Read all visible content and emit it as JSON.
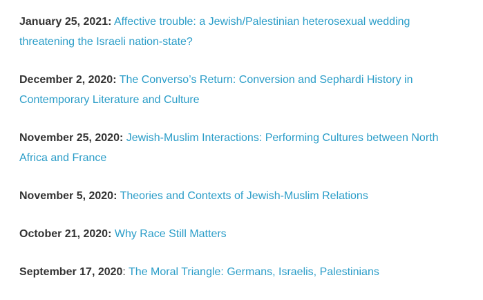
{
  "entries": [
    {
      "date": "January 25, 2021",
      "sep": ":",
      "sep_bold": true,
      "title": "Affective trouble: a Jewish/Palestinian heterosexual wedding threatening the Israeli nation-state?"
    },
    {
      "date": "December 2, 2020",
      "sep": ":",
      "sep_bold": true,
      "title": "The Converso’s Return: Conversion and Sephardi History in Contemporary Literature and Culture"
    },
    {
      "date": "November 25, 2020",
      "sep": ":",
      "sep_bold": true,
      "title": "Jewish-Muslim Interactions: Performing Cultures between North Africa and France"
    },
    {
      "date": "November 5, 2020",
      "sep": ":",
      "sep_bold": true,
      "title": "Theories and Contexts of Jewish-Muslim Relations"
    },
    {
      "date": "October 21, 2020",
      "sep": ":",
      "sep_bold": true,
      "title": "Why Race Still Matters"
    },
    {
      "date": "September 17, 2020",
      "sep": ":",
      "sep_bold": false,
      "title": "The Moral Triangle: Germans, Israelis, Palestinians"
    }
  ],
  "colors": {
    "link": "#2b9dc8",
    "text": "#333333"
  }
}
